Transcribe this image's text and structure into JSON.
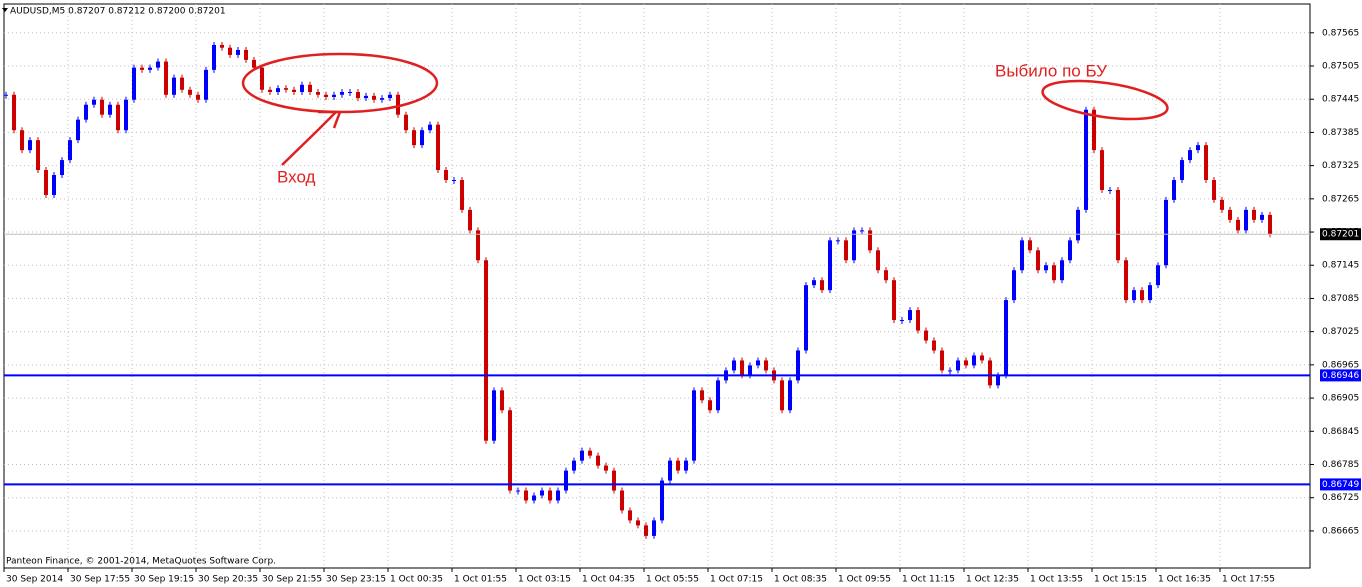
{
  "chart_data": {
    "type": "candlestick",
    "header": "AUDUSD,M5 0.87207 0.87212 0.87200 0.87201",
    "footer": "Panteon Finance, © 2001-2014, MetaQuotes Software Corp.",
    "annotations": [
      "Вход",
      "Выбило по БУ"
    ],
    "up_color": "#0000ff",
    "down_color": "#cc0000",
    "ylim": [
      0.86598,
      0.87617
    ],
    "yticks": [
      0.87565,
      0.87505,
      0.87445,
      0.87385,
      0.87325,
      0.87265,
      0.87205,
      0.87145,
      0.87085,
      0.87025,
      0.86965,
      0.86905,
      0.86845,
      0.86785,
      0.86725,
      0.86665
    ],
    "grid": true,
    "x_tick_labels": [
      "30 Sep 2014",
      "30 Sep 17:55",
      "30 Sep 19:15",
      "30 Sep 20:35",
      "30 Sep 21:55",
      "30 Sep 23:15",
      "1 Oct 00:35",
      "1 Oct 01:55",
      "1 Oct 03:15",
      "1 Oct 04:35",
      "1 Oct 05:55",
      "1 Oct 07:15",
      "1 Oct 08:35",
      "1 Oct 09:55",
      "1 Oct 11:15",
      "1 Oct 12:35",
      "1 Oct 13:55",
      "1 Oct 15:15",
      "1 Oct 16:35",
      "1 Oct 17:55"
    ],
    "levels": [
      {
        "value": 0.86946,
        "color": "#0000ff"
      },
      {
        "value": 0.86749,
        "color": "#0000ff"
      }
    ],
    "last": 0.87201,
    "values": [
      0.87453,
      0.87389,
      0.87353,
      0.87371,
      0.87317,
      0.87272,
      0.87308,
      0.87335,
      0.87371,
      0.87408,
      0.87435,
      0.87444,
      0.87417,
      0.87435,
      0.87389,
      0.87444,
      0.87502,
      0.87498,
      0.87502,
      0.87513,
      0.87453,
      0.87484,
      0.87462,
      0.87453,
      0.87444,
      0.87498,
      0.87543,
      0.87538,
      0.87525,
      0.87534,
      0.87516,
      0.87502,
      0.87462,
      0.87458,
      0.87465,
      0.87462,
      0.87458,
      0.87471,
      0.87458,
      0.87453,
      0.87449,
      0.87453,
      0.87458,
      0.87458,
      0.87447,
      0.87451,
      0.87444,
      0.87447,
      0.87453,
      0.87417,
      0.87389,
      0.87362,
      0.87389,
      0.87399,
      0.87317,
      0.87299,
      0.87299,
      0.87245,
      0.87208,
      0.87154,
      0.86828,
      0.86919,
      0.86883,
      0.86738,
      0.86738,
      0.8672,
      0.86729,
      0.86738,
      0.8672,
      0.86738,
      0.86774,
      0.86792,
      0.8681,
      0.86801,
      0.86783,
      0.86774,
      0.86738,
      0.86702,
      0.86684,
      0.86675,
      0.86656,
      0.86684,
      0.86756,
      0.86792,
      0.86774,
      0.86792,
      0.86919,
      0.86901,
      0.86883,
      0.86937,
      0.86955,
      0.86973,
      0.86946,
      0.86964,
      0.86973,
      0.86955,
      0.86937,
      0.86883,
      0.86937,
      0.86991,
      0.87109,
      0.87118,
      0.871,
      0.8719,
      0.8719,
      0.87154,
      0.87208,
      0.87208,
      0.87172,
      0.87136,
      0.87118,
      0.87046,
      0.87046,
      0.87064,
      0.87027,
      0.87009,
      0.86991,
      0.86955,
      0.86955,
      0.86973,
      0.86964,
      0.86982,
      0.86973,
      0.86928,
      0.86946,
      0.87082,
      0.87136,
      0.8719,
      0.87172,
      0.87136,
      0.87145,
      0.87118,
      0.87154,
      0.8719,
      0.87245,
      0.87426,
      0.87353,
      0.87281,
      0.87281,
      0.87154,
      0.87082,
      0.871,
      0.87082,
      0.87109,
      0.87145,
      0.87263,
      0.87299,
      0.87335,
      0.87353,
      0.87362,
      0.87299,
      0.87263,
      0.87245,
      0.87227,
      0.87208,
      0.87245,
      0.87227,
      0.87236,
      0.87201
    ]
  }
}
